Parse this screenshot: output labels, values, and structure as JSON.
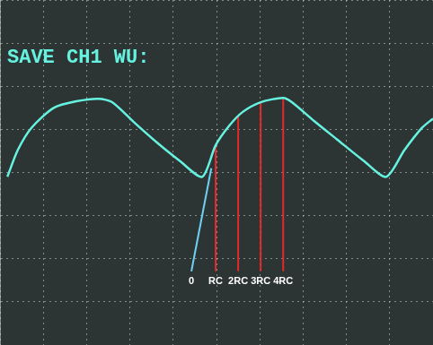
{
  "chart_data": {
    "type": "line",
    "title": "SAVE CH1 WU:",
    "x": [
      0.17,
      0.41,
      0.73,
      1.24,
      1.76,
      2.28,
      2.59,
      3.11,
      3.63,
      4.15,
      4.67,
      4.98,
      5.29,
      5.6,
      6.02,
      6.54,
      6.74,
      7.26,
      7.78,
      8.4,
      8.92,
      9.34,
      9.75,
      10
    ],
    "series": [
      {
        "name": "CH1",
        "color": "#66f2e0",
        "values": [
          -0.1,
          0.52,
          1.04,
          1.5,
          1.65,
          1.71,
          1.63,
          1.15,
          0.69,
          0.27,
          -0.1,
          0.63,
          1.08,
          1.4,
          1.63,
          1.73,
          1.63,
          1.19,
          0.77,
          0.27,
          -0.1,
          0.52,
          1.04,
          1.25
        ]
      }
    ],
    "xlim": [
      0,
      10
    ],
    "ylim": [
      -4,
      4
    ],
    "xticks": [
      0,
      1,
      2,
      3,
      4,
      5,
      6,
      7,
      8,
      9,
      10
    ],
    "yticks": [
      -4,
      -3,
      -2,
      -1,
      0,
      1,
      2,
      3,
      4
    ],
    "grid": true,
    "tick_labels": false,
    "markers": [
      {
        "label": "0",
        "x": 4.42,
        "y": -2.29,
        "x_end": 4.88,
        "y_end": 0.1,
        "color": "#6fd0f5"
      },
      {
        "label": "RC",
        "x": 4.98,
        "y": -2.29,
        "x_end": 4.98,
        "y_end": 0.63,
        "color": "#e5282a"
      },
      {
        "label": "2RC",
        "x": 5.5,
        "y": -2.29,
        "x_end": 5.5,
        "y_end": 1.29,
        "color": "#e5282a"
      },
      {
        "label": "3RC",
        "x": 6.02,
        "y": -2.29,
        "x_end": 6.02,
        "y_end": 1.63,
        "color": "#e5282a"
      },
      {
        "label": "4RC",
        "x": 6.54,
        "y": -2.29,
        "x_end": 6.54,
        "y_end": 1.73,
        "color": "#e5282a"
      }
    ]
  }
}
